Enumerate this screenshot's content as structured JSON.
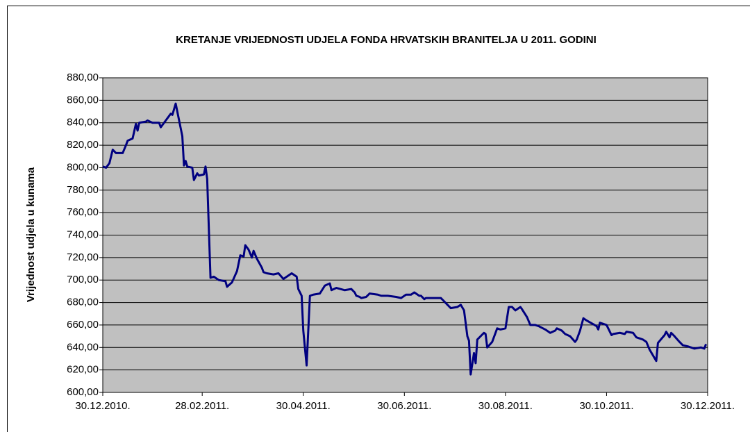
{
  "chart_data": {
    "type": "line",
    "title": "KRETANJE VRIJEDNOSTI UDJELA FONDA HRVATSKIH BRANITELJA U 2011. GODINI",
    "y_label": "Vrijednost udjela u kunama",
    "series": [
      {
        "name": "Vrijednost udjela",
        "color": "#000080",
        "x": [
          "30.12.2010.",
          "01.01.2011.",
          "03.01.2011.",
          "05.01.2011.",
          "07.01.2011.",
          "11.01.2011.",
          "13.01.2011.",
          "14.01.2011.",
          "17.01.2011.",
          "19.01.2011.",
          "20.01.2011.",
          "21.01.2011.",
          "25.01.2011.",
          "26.01.2011.",
          "29.01.2011.",
          "02.02.2011.",
          "03.02.2011.",
          "05.02.2011.",
          "09.02.2011.",
          "10.02.2011.",
          "12.02.2011.",
          "16.02.2011.",
          "17.02.2011.",
          "18.02.2011.",
          "19.02.2011.",
          "22.02.2011.",
          "23.02.2011.",
          "25.02.2011.",
          "26.02.2011.",
          "01.03.2011.",
          "02.03.2011.",
          "03.03.2011.",
          "05.03.2011.",
          "07.03.2011.",
          "10.03.2011.",
          "14.03.2011.",
          "15.03.2011.",
          "18.03.2011.",
          "21.03.2011.",
          "23.03.2011.",
          "25.03.2011.",
          "26.03.2011.",
          "28.03.2011.",
          "30.03.2011.",
          "31.03.2011.",
          "02.04.2011.",
          "05.04.2011.",
          "06.04.2011.",
          "08.04.2011.",
          "12.04.2011.",
          "15.04.2011.",
          "18.04.2011.",
          "20.04.2011.",
          "23.04.2011.",
          "26.04.2011.",
          "27.04.2011.",
          "29.04.2011.",
          "30.04.2011.",
          "02.05.2011.",
          "04.05.2011.",
          "06.05.2011.",
          "10.05.2011.",
          "13.05.2011.",
          "16.05.2011.",
          "17.05.2011.",
          "20.05.2011.",
          "25.05.2011.",
          "29.05.2011.",
          "31.05.2011.",
          "01.06.2011.",
          "03.06.2011.",
          "04.06.2011.",
          "07.06.2011.",
          "09.06.2011.",
          "14.06.2011.",
          "16.06.2011.",
          "20.06.2011.",
          "25.06.2011.",
          "28.06.2011.",
          "01.07.2011.",
          "04.07.2011.",
          "06.07.2011.",
          "09.07.2011.",
          "10.07.2011.",
          "12.07.2011.",
          "13.07.2011.",
          "21.07.2011.",
          "22.07.2011.",
          "26.07.2011.",
          "28.07.2011.",
          "01.08.2011.",
          "03.08.2011.",
          "05.08.2011.",
          "07.08.2011.",
          "08.08.2011.",
          "09.08.2011.",
          "11.08.2011.",
          "12.08.2011.",
          "13.08.2011.",
          "17.08.2011.",
          "18.08.2011.",
          "19.08.2011.",
          "22.08.2011.",
          "24.08.2011.",
          "25.08.2011.",
          "27.08.2011.",
          "30.08.2011.",
          "01.09.2011.",
          "03.09.2011.",
          "05.09.2011.",
          "08.09.2011.",
          "09.09.2011.",
          "12.09.2011.",
          "14.09.2011.",
          "17.09.2011.",
          "19.09.2011.",
          "23.09.2011.",
          "26.09.2011.",
          "29.09.2011.",
          "30.09.2011.",
          "03.10.2011.",
          "05.10.2011.",
          "08.10.2011.",
          "11.10.2011.",
          "12.10.2011.",
          "14.10.2011.",
          "16.10.2011.",
          "18.10.2011.",
          "24.10.2011.",
          "25.10.2011.",
          "26.10.2011.",
          "28.10.2011.",
          "30.10.2011.",
          "02.11.2011.",
          "03.11.2011.",
          "07.11.2011.",
          "10.11.2011.",
          "11.11.2011.",
          "15.11.2011.",
          "17.11.2011.",
          "21.11.2011.",
          "23.11.2011.",
          "25.11.2011.",
          "27.11.2011.",
          "29.11.2011.",
          "30.11.2011.",
          "04.12.2011.",
          "05.12.2011.",
          "07.12.2011.",
          "08.12.2011.",
          "10.12.2011.",
          "13.12.2011.",
          "15.12.2011.",
          "18.12.2011.",
          "20.12.2011.",
          "22.12.2011.",
          "26.12.2011.",
          "28.12.2011.",
          "29.12.2011."
        ],
        "values": [
          801,
          800,
          804,
          816,
          813,
          813,
          820,
          824,
          826,
          839,
          833,
          840,
          841,
          842,
          840,
          840,
          836,
          840,
          848,
          847,
          857,
          828,
          802,
          806,
          801,
          800,
          789,
          795,
          793,
          794,
          801,
          790,
          702,
          703,
          700,
          699,
          694,
          698,
          708,
          722,
          721,
          731,
          727,
          720,
          726,
          719,
          711,
          707,
          706,
          705,
          706,
          701,
          703,
          706,
          703,
          692,
          686,
          655,
          624,
          686,
          687,
          688,
          695,
          697,
          691,
          693,
          691,
          692,
          689,
          686,
          685,
          684,
          685,
          688,
          687,
          686,
          686,
          685,
          684,
          687,
          687,
          689,
          686,
          686,
          683,
          684,
          684,
          684,
          678,
          675,
          676,
          678,
          673,
          650,
          646,
          616,
          635,
          626,
          647,
          653,
          652,
          640,
          645,
          653,
          657,
          656,
          657,
          676,
          676,
          673,
          676,
          674,
          667,
          660,
          660,
          659,
          656,
          653,
          655,
          657,
          655,
          652,
          650,
          645,
          647,
          655,
          666,
          664,
          659,
          656,
          662,
          661,
          660,
          651,
          652,
          653,
          652,
          654,
          653,
          649,
          647,
          645,
          638,
          633,
          628,
          644,
          651,
          654,
          649,
          653,
          650,
          645,
          642,
          641,
          640,
          639,
          640,
          639,
          643
        ]
      }
    ],
    "xlim": [
      "30.12.2010.",
      "30.12.2011."
    ],
    "xticks": [
      "30.12.2010.",
      "28.02.2011.",
      "30.04.2011.",
      "30.06.2011.",
      "30.08.2011.",
      "30.10.2011.",
      "30.12.2011."
    ],
    "ylim": [
      600,
      880
    ],
    "yticks": [
      {
        "value": 600,
        "label": "600,00"
      },
      {
        "value": 620,
        "label": "620,00"
      },
      {
        "value": 640,
        "label": "640,00"
      },
      {
        "value": 660,
        "label": "660,00"
      },
      {
        "value": 680,
        "label": "680,00"
      },
      {
        "value": 700,
        "label": "700,00"
      },
      {
        "value": 720,
        "label": "720,00"
      },
      {
        "value": 740,
        "label": "740,00"
      },
      {
        "value": 760,
        "label": "760,00"
      },
      {
        "value": 780,
        "label": "780,00"
      },
      {
        "value": 800,
        "label": "800,00"
      },
      {
        "value": 820,
        "label": "820,00"
      },
      {
        "value": 840,
        "label": "840,00"
      },
      {
        "value": 860,
        "label": "860,00"
      },
      {
        "value": 880,
        "label": "880,00"
      }
    ],
    "grid": true,
    "plot_color": "#c0c0c0"
  }
}
